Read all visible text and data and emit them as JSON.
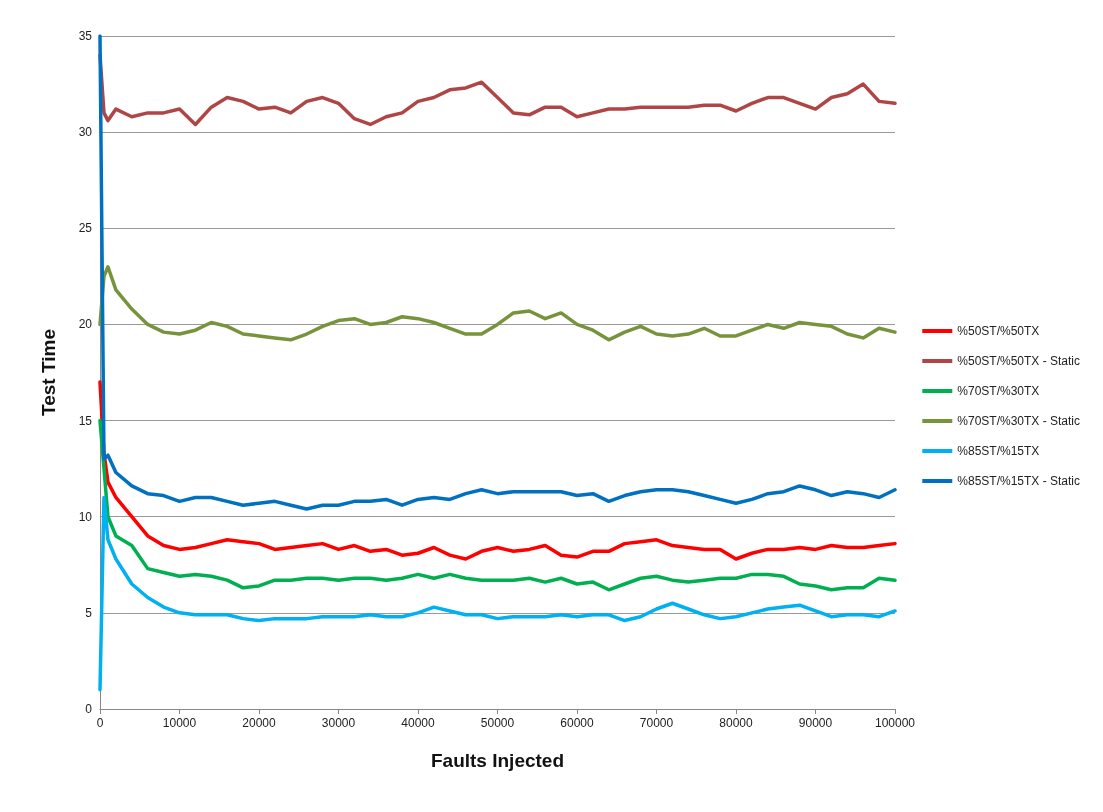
{
  "chart_data": {
    "type": "line",
    "xlabel": "Faults Injected",
    "ylabel": "Test Time",
    "x": [
      0,
      500,
      1000,
      2000,
      4000,
      6000,
      8000,
      10000,
      12000,
      14000,
      16000,
      18000,
      20000,
      22000,
      24000,
      26000,
      28000,
      30000,
      32000,
      34000,
      36000,
      38000,
      40000,
      42000,
      44000,
      46000,
      48000,
      50000,
      52000,
      54000,
      56000,
      58000,
      60000,
      62000,
      64000,
      66000,
      68000,
      70000,
      72000,
      74000,
      76000,
      78000,
      80000,
      82000,
      84000,
      86000,
      88000,
      90000,
      92000,
      94000,
      96000,
      98000,
      100000
    ],
    "series": [
      {
        "name": "%50ST/%50TX",
        "color": "#ff0000",
        "values": [
          17,
          13.3,
          11.8,
          11,
          10,
          9,
          8.5,
          8.3,
          8.4,
          8.6,
          8.8,
          8.7,
          8.6,
          8.3,
          8.4,
          8.5,
          8.6,
          8.3,
          8.5,
          8.2,
          8.3,
          8.0,
          8.1,
          8.4,
          8.0,
          7.8,
          8.2,
          8.4,
          8.2,
          8.3,
          8.5,
          8.0,
          7.9,
          8.2,
          8.2,
          8.6,
          8.7,
          8.8,
          8.5,
          8.4,
          8.3,
          8.3,
          7.8,
          8.1,
          8.3,
          8.3,
          8.4,
          8.3,
          8.5,
          8.4,
          8.4,
          8.5,
          8.6
        ]
      },
      {
        "name": "%50ST/%50TX - Static",
        "color": "#b04545",
        "values": [
          34,
          31,
          30.6,
          31.2,
          30.8,
          31,
          31,
          31.2,
          30.4,
          31.3,
          31.8,
          31.6,
          31.2,
          31.3,
          31,
          31.6,
          31.8,
          31.5,
          30.7,
          30.4,
          30.8,
          31,
          31.6,
          31.8,
          32.2,
          32.3,
          32.6,
          31.8,
          31,
          30.9,
          31.3,
          31.3,
          30.8,
          31,
          31.2,
          31.2,
          31.3,
          31.3,
          31.3,
          31.3,
          31.4,
          31.4,
          31.1,
          31.5,
          31.8,
          31.8,
          31.5,
          31.2,
          31.8,
          32.0,
          32.5,
          31.6,
          31.5
        ]
      },
      {
        "name": "%70ST/%30TX",
        "color": "#00b050",
        "values": [
          15,
          12.5,
          10,
          9,
          8.5,
          7.3,
          7.1,
          6.9,
          7.0,
          6.9,
          6.7,
          6.3,
          6.4,
          6.7,
          6.7,
          6.8,
          6.8,
          6.7,
          6.8,
          6.8,
          6.7,
          6.8,
          7.0,
          6.8,
          7.0,
          6.8,
          6.7,
          6.7,
          6.7,
          6.8,
          6.6,
          6.8,
          6.5,
          6.6,
          6.2,
          6.5,
          6.8,
          6.9,
          6.7,
          6.6,
          6.7,
          6.8,
          6.8,
          7.0,
          7.0,
          6.9,
          6.5,
          6.4,
          6.2,
          6.3,
          6.3,
          6.8,
          6.7
        ]
      },
      {
        "name": "%70ST/%30TX - Static",
        "color": "#77933c",
        "values": [
          20,
          22.5,
          23,
          21.8,
          20.8,
          20.0,
          19.6,
          19.5,
          19.7,
          20.1,
          19.9,
          19.5,
          19.4,
          19.3,
          19.2,
          19.5,
          19.9,
          20.2,
          20.3,
          20.0,
          20.1,
          20.4,
          20.3,
          20.1,
          19.8,
          19.5,
          19.5,
          20.0,
          20.6,
          20.7,
          20.3,
          20.6,
          20.0,
          19.7,
          19.2,
          19.6,
          19.9,
          19.5,
          19.4,
          19.5,
          19.8,
          19.4,
          19.4,
          19.7,
          20.0,
          19.8,
          20.1,
          20.0,
          19.9,
          19.5,
          19.3,
          19.8,
          19.6
        ]
      },
      {
        "name": "%85ST/%15TX",
        "color": "#00b0f0",
        "values": [
          1,
          11,
          8.8,
          7.8,
          6.5,
          5.8,
          5.3,
          5.0,
          4.9,
          4.9,
          4.9,
          4.7,
          4.6,
          4.7,
          4.7,
          4.7,
          4.8,
          4.8,
          4.8,
          4.9,
          4.8,
          4.8,
          5.0,
          5.3,
          5.1,
          4.9,
          4.9,
          4.7,
          4.8,
          4.8,
          4.8,
          4.9,
          4.8,
          4.9,
          4.9,
          4.6,
          4.8,
          5.2,
          5.5,
          5.2,
          4.9,
          4.7,
          4.8,
          5.0,
          5.2,
          5.3,
          5.4,
          5.1,
          4.8,
          4.9,
          4.9,
          4.8,
          5.1
        ]
      },
      {
        "name": "%85ST/%15TX - Static",
        "color": "#0070c0",
        "values": [
          35,
          13,
          13.2,
          12.3,
          11.6,
          11.2,
          11.1,
          10.8,
          11,
          11,
          10.8,
          10.6,
          10.7,
          10.8,
          10.6,
          10.4,
          10.6,
          10.6,
          10.8,
          10.8,
          10.9,
          10.6,
          10.9,
          11.0,
          10.9,
          11.2,
          11.4,
          11.2,
          11.3,
          11.3,
          11.3,
          11.3,
          11.1,
          11.2,
          10.8,
          11.1,
          11.3,
          11.4,
          11.4,
          11.3,
          11.1,
          10.9,
          10.7,
          10.9,
          11.2,
          11.3,
          11.6,
          11.4,
          11.1,
          11.3,
          11.2,
          11.0,
          11.4
        ]
      }
    ],
    "xlim": [
      0,
      100000
    ],
    "xticks": [
      0,
      10000,
      20000,
      30000,
      40000,
      50000,
      60000,
      70000,
      80000,
      90000,
      100000
    ],
    "ylim": [
      0,
      35
    ],
    "yticks": [
      0,
      5,
      10,
      15,
      20,
      25,
      30,
      35
    ],
    "grid": "y",
    "legend": "right",
    "marker": "none",
    "line_style": "solid"
  }
}
